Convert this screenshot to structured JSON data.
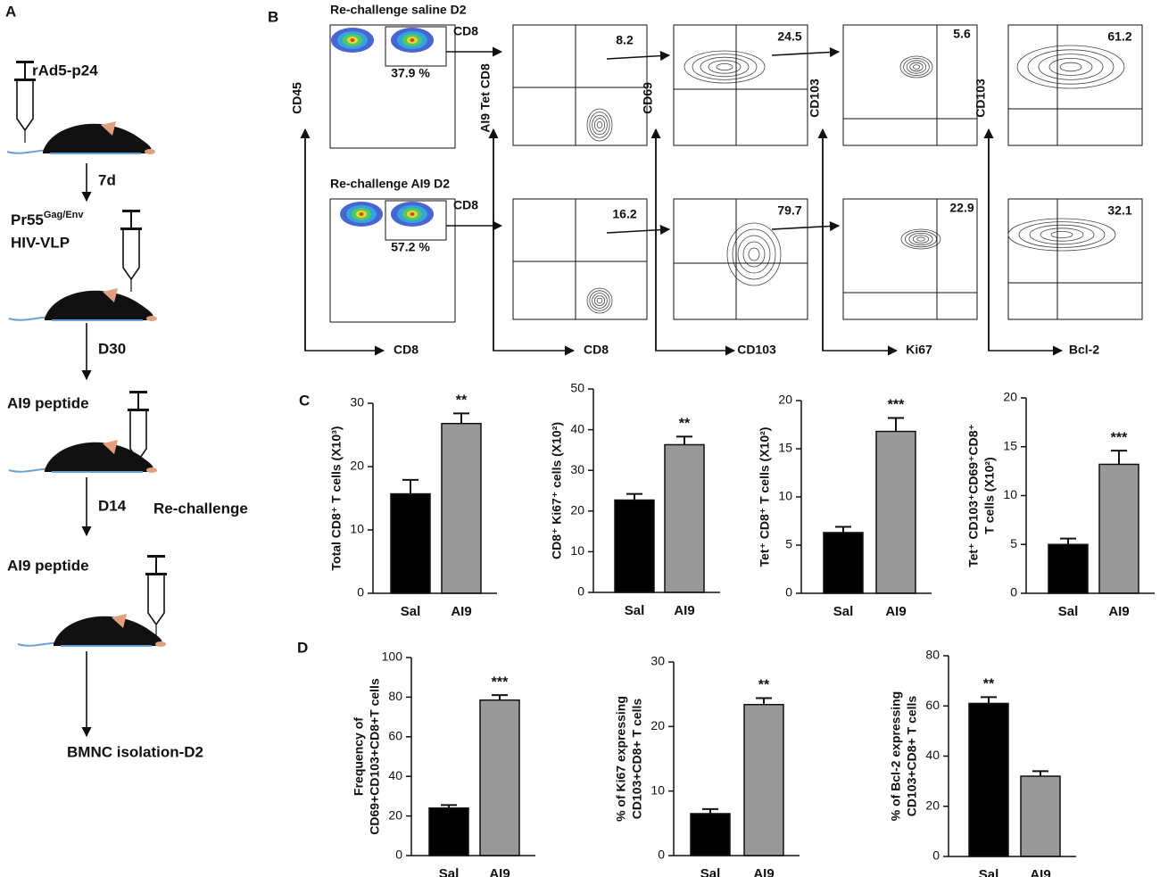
{
  "protocol": {
    "label": "A",
    "vaccine": "rAd5-p24",
    "interval1": "7d",
    "boost_base": "Pr55",
    "boost_sup": "Gag/Env",
    "boost_line2": "HIV-VLP",
    "interval2": "D30",
    "peptide1": "AI9 peptide",
    "interval3": "D14",
    "rechallenge": "Re-challenge",
    "peptide2": "AI9 peptide",
    "endpoint": "BMNC isolation-D2"
  },
  "flow": {
    "label": "B",
    "gate_label": "CD8",
    "rows": [
      {
        "title": "Re-challenge saline D2",
        "gate": "37.9 %",
        "values": [
          "8.2",
          "24.5",
          "5.6",
          "61.2"
        ]
      },
      {
        "title": "Re-challenge AI9 D2",
        "gate": "57.2 %",
        "values": [
          "16.2",
          "79.7",
          "22.9",
          "32.1"
        ]
      }
    ],
    "axes": [
      {
        "y": "CD45",
        "x": "CD8"
      },
      {
        "y": "AI9 Tet CD8",
        "x": "CD8"
      },
      {
        "y": "CD69",
        "x": "CD103"
      },
      {
        "y": "CD103",
        "x": "Ki67"
      },
      {
        "y": "CD103",
        "x": "Bcl-2"
      }
    ]
  },
  "panel_labels": [
    "C",
    "D"
  ],
  "chart_data": [
    {
      "type": "bar",
      "ylabel": [
        "Total CD8⁺ T cells (X10³)"
      ],
      "categories": [
        "Sal",
        "AI9"
      ],
      "values": [
        15.7,
        26.8
      ],
      "errors": [
        2.2,
        1.6
      ],
      "value_annotations": [
        null,
        "**"
      ],
      "colors": [
        "#000000",
        "#999999"
      ],
      "ylim": [
        0,
        30
      ],
      "yticks": [
        0,
        10,
        20,
        30
      ]
    },
    {
      "type": "bar",
      "ylabel": [
        "CD8⁺ Ki67⁺ cells (X10²)"
      ],
      "categories": [
        "Sal",
        "AI9"
      ],
      "values": [
        22.7,
        36.3
      ],
      "errors": [
        1.5,
        2.0
      ],
      "value_annotations": [
        null,
        "**"
      ],
      "colors": [
        "#000000",
        "#999999"
      ],
      "ylim": [
        0,
        50
      ],
      "yticks": [
        0,
        10,
        20,
        30,
        40,
        50
      ]
    },
    {
      "type": "bar",
      "ylabel": [
        "Tet⁺ CD8⁺ T cells (X10²)"
      ],
      "categories": [
        "Sal",
        "AI9"
      ],
      "values": [
        6.3,
        16.8
      ],
      "errors": [
        0.6,
        1.4
      ],
      "value_annotations": [
        null,
        "***"
      ],
      "colors": [
        "#000000",
        "#999999"
      ],
      "ylim": [
        0,
        20
      ],
      "yticks": [
        0,
        5,
        10,
        15,
        20
      ]
    },
    {
      "type": "bar",
      "ylabel": [
        "Tet⁺ CD103⁺CD69⁺CD8⁺",
        "T cells (X10²)"
      ],
      "categories": [
        "Sal",
        "AI9"
      ],
      "values": [
        5.0,
        13.2
      ],
      "errors": [
        0.6,
        1.4
      ],
      "value_annotations": [
        null,
        "***"
      ],
      "colors": [
        "#000000",
        "#999999"
      ],
      "ylim": [
        0,
        20
      ],
      "yticks": [
        0,
        5,
        10,
        15,
        20
      ]
    },
    {
      "type": "bar",
      "ylabel": [
        "Frequency of",
        "CD69+CD103+CD8+T cells"
      ],
      "categories": [
        "Sal",
        "AI9"
      ],
      "values": [
        24,
        78.5
      ],
      "errors": [
        1.5,
        2.5
      ],
      "value_annotations": [
        null,
        "***"
      ],
      "colors": [
        "#000000",
        "#999999"
      ],
      "ylim": [
        0,
        100
      ],
      "yticks": [
        0,
        20,
        40,
        60,
        80,
        100
      ]
    },
    {
      "type": "bar",
      "ylabel": [
        "% of Ki67 expressing",
        "CD103+CD8+ T cells"
      ],
      "categories": [
        "Sal",
        "AI9"
      ],
      "values": [
        6.5,
        23.4
      ],
      "errors": [
        0.7,
        1.0
      ],
      "value_annotations": [
        null,
        "**"
      ],
      "colors": [
        "#000000",
        "#999999"
      ],
      "ylim": [
        0,
        30
      ],
      "yticks": [
        0,
        10,
        20,
        30
      ]
    },
    {
      "type": "bar",
      "ylabel": [
        "% of Bcl-2 expressing",
        "CD103+CD8+ T cells"
      ],
      "categories": [
        "Sal",
        "AI9"
      ],
      "values": [
        61,
        32
      ],
      "errors": [
        2.5,
        2.0
      ],
      "value_annotations": [
        "**",
        null
      ],
      "colors": [
        "#000000",
        "#999999"
      ],
      "ylim": [
        0,
        80
      ],
      "yticks": [
        0,
        20,
        40,
        60,
        80
      ]
    }
  ]
}
